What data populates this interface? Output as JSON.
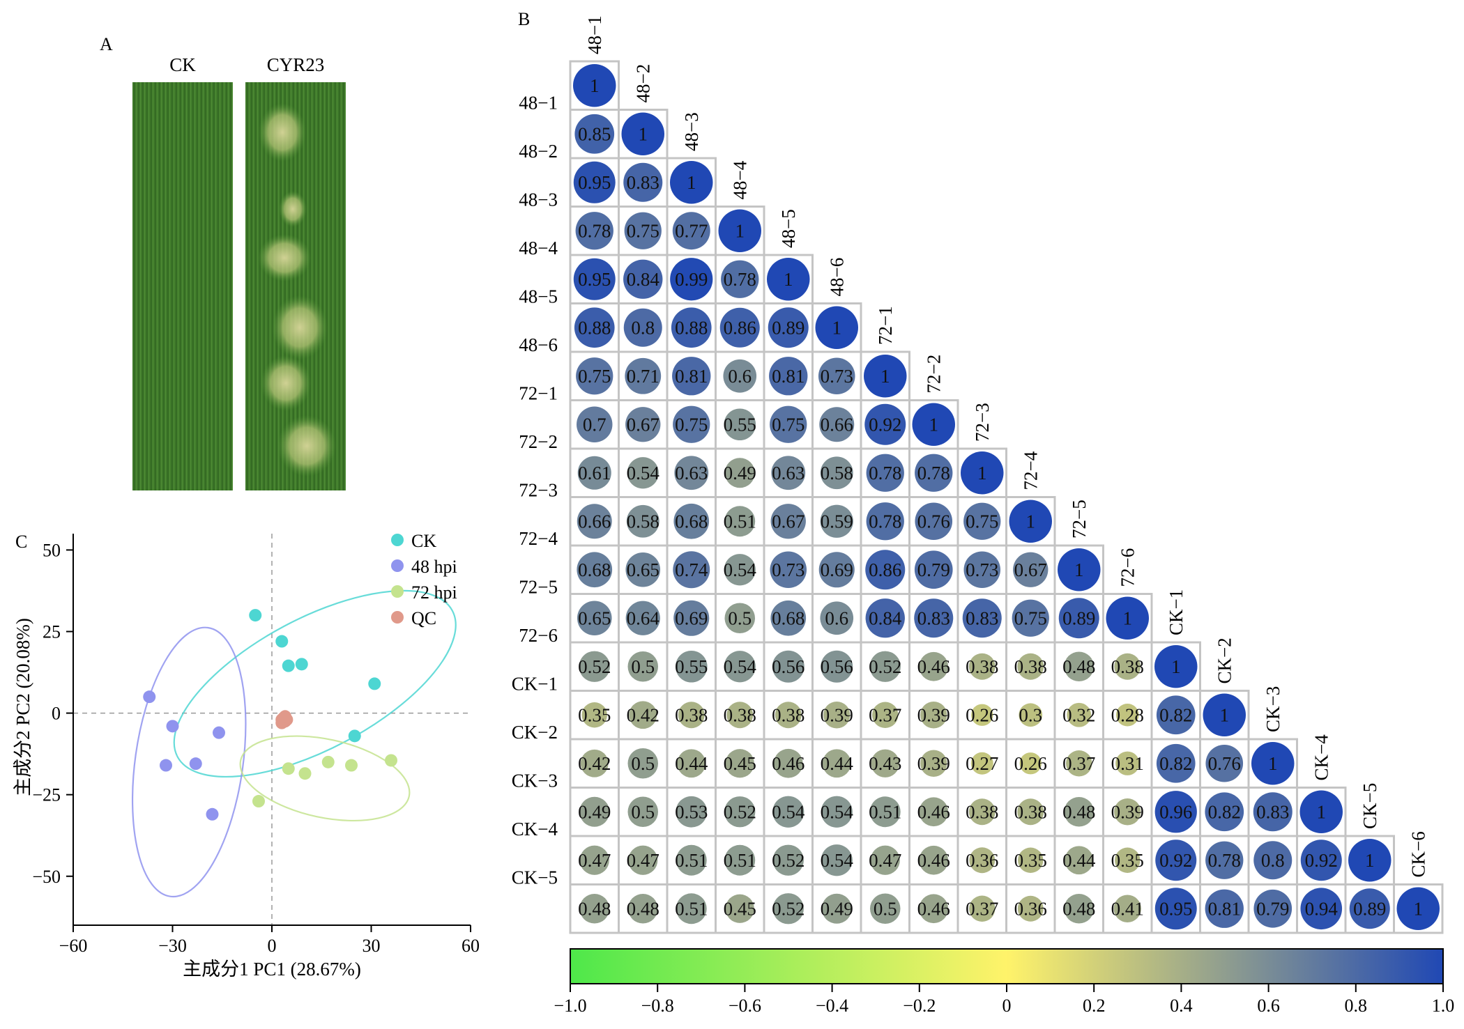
{
  "panel_labels": {
    "a": "A",
    "b": "B",
    "c": "C"
  },
  "panel_a": {
    "labels": [
      "CK",
      "CYR23"
    ],
    "leaf_colors": {
      "base": "#3f7a2a",
      "dark": "#2c5f1e",
      "light": "#5c9a3e",
      "lesion": "#b9c77a"
    }
  },
  "chart_data": [
    {
      "type": "heatmap",
      "labels": [
        "48−1",
        "48−2",
        "48−3",
        "48−4",
        "48−5",
        "48−6",
        "72−1",
        "72−2",
        "72−3",
        "72−4",
        "72−5",
        "72−6",
        "CK−1",
        "CK−2",
        "CK−3",
        "CK−4",
        "CK−5",
        "CK−6"
      ],
      "lower_triangle": [
        [
          1
        ],
        [
          0.85,
          1
        ],
        [
          0.95,
          0.83,
          1
        ],
        [
          0.78,
          0.75,
          0.77,
          1
        ],
        [
          0.95,
          0.84,
          0.99,
          0.78,
          1
        ],
        [
          0.88,
          0.8,
          0.88,
          0.86,
          0.89,
          1
        ],
        [
          0.75,
          0.71,
          0.81,
          0.6,
          0.81,
          0.73,
          1
        ],
        [
          0.7,
          0.67,
          0.75,
          0.55,
          0.75,
          0.66,
          0.92,
          1
        ],
        [
          0.61,
          0.54,
          0.63,
          0.49,
          0.63,
          0.58,
          0.78,
          0.78,
          1
        ],
        [
          0.66,
          0.58,
          0.68,
          0.51,
          0.67,
          0.59,
          0.78,
          0.76,
          0.75,
          1
        ],
        [
          0.68,
          0.65,
          0.74,
          0.54,
          0.73,
          0.69,
          0.86,
          0.79,
          0.73,
          0.67,
          1
        ],
        [
          0.65,
          0.64,
          0.69,
          0.5,
          0.68,
          0.6,
          0.84,
          0.83,
          0.83,
          0.75,
          0.89,
          1
        ],
        [
          0.52,
          0.5,
          0.55,
          0.54,
          0.56,
          0.56,
          0.52,
          0.46,
          0.38,
          0.38,
          0.48,
          0.38,
          1
        ],
        [
          0.35,
          0.42,
          0.38,
          0.38,
          0.38,
          0.39,
          0.37,
          0.39,
          0.26,
          0.3,
          0.32,
          0.28,
          0.82,
          1
        ],
        [
          0.42,
          0.5,
          0.44,
          0.45,
          0.46,
          0.44,
          0.43,
          0.39,
          0.27,
          0.26,
          0.37,
          0.31,
          0.82,
          0.76,
          1
        ],
        [
          0.49,
          0.5,
          0.53,
          0.52,
          0.54,
          0.54,
          0.51,
          0.46,
          0.38,
          0.38,
          0.48,
          0.39,
          0.96,
          0.82,
          0.83,
          1
        ],
        [
          0.47,
          0.47,
          0.51,
          0.51,
          0.52,
          0.54,
          0.47,
          0.46,
          0.36,
          0.35,
          0.44,
          0.35,
          0.92,
          0.78,
          0.8,
          0.92,
          1
        ],
        [
          0.48,
          0.48,
          0.51,
          0.45,
          0.52,
          0.49,
          0.5,
          0.46,
          0.37,
          0.36,
          0.48,
          0.41,
          0.95,
          0.81,
          0.79,
          0.94,
          0.89,
          1
        ]
      ],
      "colorbar": {
        "range": [
          -1.0,
          1.0
        ],
        "ticks": [
          -1.0,
          -0.8,
          -0.6,
          -0.4,
          -0.2,
          0,
          0.2,
          0.4,
          0.6,
          0.8,
          1.0
        ],
        "tick_labels": [
          "−1.0",
          "−0.8",
          "−0.6",
          "−0.4",
          "−0.2",
          "0",
          "0.2",
          "0.4",
          "0.6",
          "0.8",
          "1.0"
        ],
        "colors": [
          "#4ee84a",
          "#fff36a",
          "#2048b4"
        ]
      }
    },
    {
      "type": "scatter",
      "xlabel": "主成分1 PC1 (28.67%)",
      "ylabel": "主成分2 PC2 (20.08%)",
      "xlim": [
        -60,
        60
      ],
      "ylim": [
        -65,
        55
      ],
      "xticks": [
        -60,
        -30,
        0,
        30,
        60
      ],
      "xtick_labels": [
        "−60",
        "−30",
        "0",
        "30",
        "60"
      ],
      "yticks": [
        -50,
        -25,
        0,
        25,
        50
      ],
      "ytick_labels": [
        "−50",
        "−25",
        "0",
        "25",
        "50"
      ],
      "legend_position": "top-right",
      "series": [
        {
          "name": "CK",
          "color": "#4dd6d2",
          "points": [
            [
              -5,
              30
            ],
            [
              3,
              22
            ],
            [
              9,
              15
            ],
            [
              5,
              14.5
            ],
            [
              31,
              9
            ],
            [
              25,
              -7
            ]
          ],
          "ellipse": {
            "cx": 13,
            "cy": 9,
            "rx": 47,
            "ry": 20,
            "angle_deg": -28
          }
        },
        {
          "name": "48 hpi",
          "color": "#8f93ee",
          "points": [
            [
              -37,
              5
            ],
            [
              -30,
              -4
            ],
            [
              -16,
              -6
            ],
            [
              -32,
              -16
            ],
            [
              -23,
              -15.5
            ],
            [
              -18,
              -31
            ]
          ],
          "ellipse": {
            "cx": -25,
            "cy": -15,
            "rx": 41,
            "ry": 16.5,
            "angle_deg": -82
          }
        },
        {
          "name": "72 hpi",
          "color": "#c4e38e",
          "points": [
            [
              -4,
              -27
            ],
            [
              5,
              -17
            ],
            [
              10,
              -18.5
            ],
            [
              17,
              -15
            ],
            [
              24,
              -16
            ],
            [
              36,
              -14.5
            ]
          ],
          "ellipse": {
            "cx": 16,
            "cy": -20,
            "rx": 26,
            "ry": 12,
            "angle_deg": 12
          }
        },
        {
          "name": "QC",
          "color": "#e0998a",
          "points": [
            [
              3,
              -2
            ],
            [
              4,
              -2.5
            ],
            [
              3.5,
              -1.5
            ],
            [
              4.5,
              -2
            ],
            [
              3,
              -3
            ],
            [
              4,
              -1
            ]
          ]
        }
      ]
    }
  ]
}
